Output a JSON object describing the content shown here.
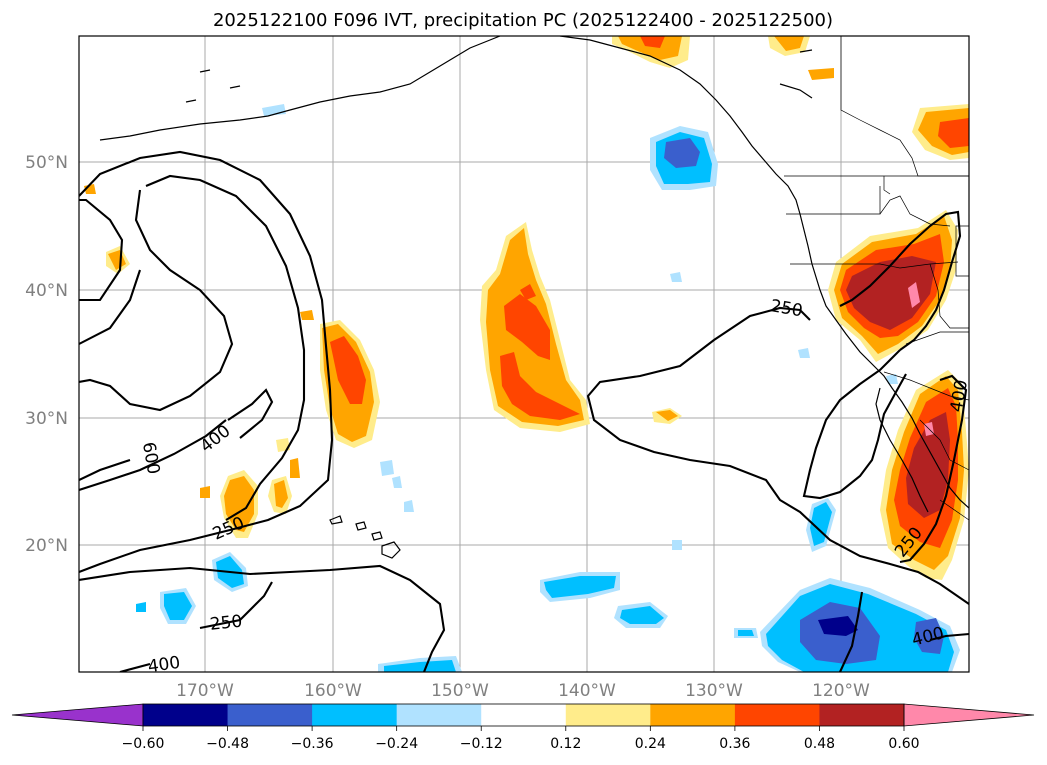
{
  "title": "2025122100 F096 IVT, precipitation PC (2025122400 - 2025122500)",
  "lat_labels": [
    "50°N",
    "40°N",
    "30°N",
    "20°N"
  ],
  "lon_labels": [
    "170°W",
    "160°W",
    "150°W",
    "140°W",
    "130°W",
    "120°W"
  ],
  "colorbar": {
    "tick_labels": [
      "−0.60",
      "−0.48",
      "−0.36",
      "−0.24",
      "−0.12",
      "0.12",
      "0.24",
      "0.36",
      "0.48",
      "0.60"
    ],
    "under_color": "#9932cc",
    "over_color": "#ff88aa",
    "bin_colors": [
      "#00008b",
      "#3a5fcd",
      "#00bfff",
      "#b0e2ff",
      "#ffffff",
      "#ffec8b",
      "#ffa500",
      "#ff4500",
      "#b22222"
    ]
  },
  "ivt_contour_labels": [
    "600",
    "400",
    "250",
    "250",
    "400",
    "250",
    "250",
    "400",
    "400"
  ]
}
